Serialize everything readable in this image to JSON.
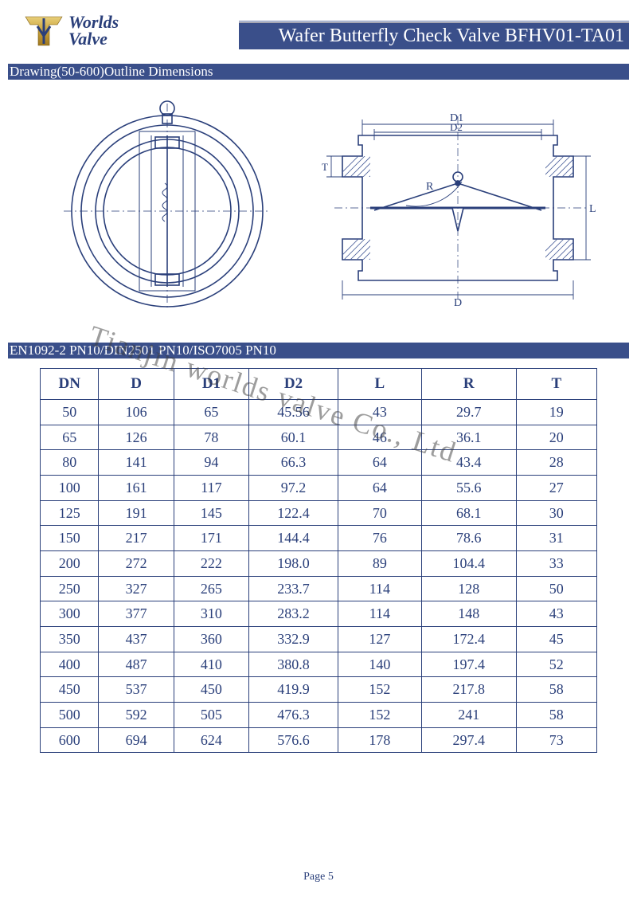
{
  "header": {
    "logo_line1": "Worlds",
    "logo_line2": "Valve",
    "title": "Wafer Butterfly Check Valve BFHV01-TA01",
    "logo_gold": "#c9a23a",
    "bar_color": "#3a4f8a"
  },
  "section1_title": "Drawing(50-600)Outline Dimensions",
  "standards_title": "EN1092-2 PN10/DIN2501 PN10/ISO7005 PN10",
  "drawing": {
    "stroke": "#2a3f7a",
    "hatch": "#4a5f9a",
    "labels": {
      "D1": "D1",
      "D2": "D2",
      "R": "R",
      "D": "D",
      "L": "L",
      "T": "T"
    }
  },
  "table": {
    "columns": [
      "DN",
      "D",
      "D1",
      "D2",
      "L",
      "R",
      "T"
    ],
    "rows": [
      [
        "50",
        "106",
        "65",
        "45.56",
        "43",
        "29.7",
        "19"
      ],
      [
        "65",
        "126",
        "78",
        "60.1",
        "46",
        "36.1",
        "20"
      ],
      [
        "80",
        "141",
        "94",
        "66.3",
        "64",
        "43.4",
        "28"
      ],
      [
        "100",
        "161",
        "117",
        "97.2",
        "64",
        "55.6",
        "27"
      ],
      [
        "125",
        "191",
        "145",
        "122.4",
        "70",
        "68.1",
        "30"
      ],
      [
        "150",
        "217",
        "171",
        "144.4",
        "76",
        "78.6",
        "31"
      ],
      [
        "200",
        "272",
        "222",
        "198.0",
        "89",
        "104.4",
        "33"
      ],
      [
        "250",
        "327",
        "265",
        "233.7",
        "114",
        "128",
        "50"
      ],
      [
        "300",
        "377",
        "310",
        "283.2",
        "114",
        "148",
        "43"
      ],
      [
        "350",
        "437",
        "360",
        "332.9",
        "127",
        "172.4",
        "45"
      ],
      [
        "400",
        "487",
        "410",
        "380.8",
        "140",
        "197.4",
        "52"
      ],
      [
        "450",
        "537",
        "450",
        "419.9",
        "152",
        "217.8",
        "58"
      ],
      [
        "500",
        "592",
        "505",
        "476.3",
        "152",
        "241",
        "58"
      ],
      [
        "600",
        "694",
        "624",
        "576.6",
        "178",
        "297.4",
        "73"
      ]
    ],
    "border_color": "#2a3f7a",
    "font_color": "#2a3f7a",
    "header_fontsize": 19,
    "cell_fontsize": 18
  },
  "watermark_text": "Tianjin worlds valve Co., Ltd",
  "page_label": "Page 5"
}
